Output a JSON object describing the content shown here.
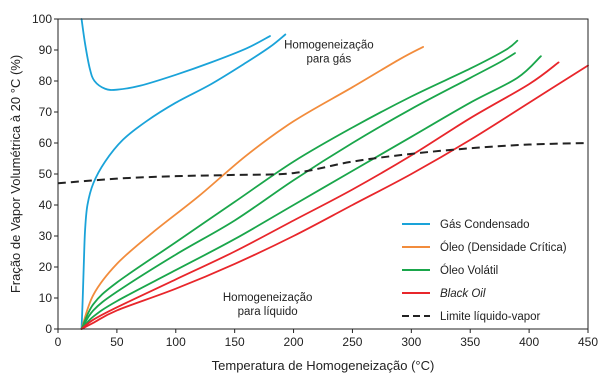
{
  "chart_data": {
    "type": "line",
    "xlabel": "Temperatura de Homogeneização (°C)",
    "ylabel": "Fração de Vapor Volumétrica à 20 °C (%)",
    "xlim": [
      0,
      450
    ],
    "ylim": [
      0,
      100
    ],
    "xticks": [
      "0",
      "50",
      "100",
      "150",
      "200",
      "250",
      "300",
      "350",
      "400",
      "450"
    ],
    "yticks": [
      "0",
      "10",
      "20",
      "30",
      "40",
      "50",
      "60",
      "70",
      "80",
      "90",
      "100"
    ],
    "grid": false,
    "legend_position": "bottom-right",
    "annotations": [
      {
        "lines": [
          "Homogeneização",
          "para gás"
        ],
        "x": 230,
        "y": 90.5
      },
      {
        "lines": [
          "Homogeneização",
          "para líquido"
        ],
        "x": 178,
        "y": 9
      }
    ],
    "legend": [
      {
        "label": "Gás Condensado",
        "color": "#1aa3d9",
        "style": "solid"
      },
      {
        "label": "Óleo (Densidade Crítica)",
        "color": "#f28c3c",
        "style": "solid"
      },
      {
        "label": "Óleo Volátil",
        "color": "#1aa64b",
        "style": "solid"
      },
      {
        "label": "Black Oil",
        "color": "#e8262b",
        "style": "solid",
        "italic": true
      },
      {
        "label": "Limite líquido-vapor",
        "color": "#222222",
        "style": "dashed"
      }
    ],
    "series": [
      {
        "group": "Gás Condensado",
        "color": "#1aa3d9",
        "points": [
          [
            20,
            100
          ],
          [
            23,
            92
          ],
          [
            27,
            84
          ],
          [
            31,
            80
          ],
          [
            40,
            77.5
          ],
          [
            50,
            77.2
          ],
          [
            70,
            78.5
          ],
          [
            100,
            82
          ],
          [
            130,
            86
          ],
          [
            160,
            90.5
          ],
          [
            180,
            94.5
          ]
        ]
      },
      {
        "group": "Gás Condensado",
        "color": "#1aa3d9",
        "points": [
          [
            20,
            0
          ],
          [
            21,
            10
          ],
          [
            22,
            22
          ],
          [
            23,
            32
          ],
          [
            25,
            40
          ],
          [
            30,
            47
          ],
          [
            40,
            54
          ],
          [
            55,
            61
          ],
          [
            75,
            67
          ],
          [
            100,
            73
          ],
          [
            130,
            79
          ],
          [
            160,
            86
          ],
          [
            180,
            91
          ],
          [
            193,
            95
          ]
        ]
      },
      {
        "group": "Óleo (Densidade Crítica)",
        "color": "#f28c3c",
        "points": [
          [
            20,
            0
          ],
          [
            30,
            11
          ],
          [
            50,
            21
          ],
          [
            80,
            31
          ],
          [
            120,
            43
          ],
          [
            160,
            56
          ],
          [
            200,
            67
          ],
          [
            250,
            78
          ],
          [
            290,
            87
          ],
          [
            310,
            91
          ]
        ]
      },
      {
        "group": "Óleo Volátil",
        "color": "#1aa64b",
        "points": [
          [
            20,
            0
          ],
          [
            30,
            8
          ],
          [
            50,
            15
          ],
          [
            100,
            28
          ],
          [
            150,
            41
          ],
          [
            200,
            54
          ],
          [
            250,
            65
          ],
          [
            300,
            75
          ],
          [
            350,
            84
          ],
          [
            380,
            90
          ],
          [
            390,
            93
          ]
        ]
      },
      {
        "group": "Óleo Volátil",
        "color": "#1aa64b",
        "points": [
          [
            20,
            0
          ],
          [
            30,
            6
          ],
          [
            50,
            12
          ],
          [
            100,
            24
          ],
          [
            150,
            35
          ],
          [
            200,
            48
          ],
          [
            250,
            60
          ],
          [
            300,
            71
          ],
          [
            350,
            81
          ],
          [
            375,
            86
          ],
          [
            388,
            89
          ]
        ]
      },
      {
        "group": "Óleo Volátil",
        "color": "#1aa64b",
        "points": [
          [
            20,
            0
          ],
          [
            30,
            4
          ],
          [
            50,
            9
          ],
          [
            100,
            19
          ],
          [
            150,
            29
          ],
          [
            200,
            40
          ],
          [
            250,
            51
          ],
          [
            300,
            62
          ],
          [
            350,
            73
          ],
          [
            390,
            81
          ],
          [
            410,
            88
          ]
        ]
      },
      {
        "group": "Black Oil",
        "color": "#e8262b",
        "points": [
          [
            20,
            0
          ],
          [
            30,
            3
          ],
          [
            50,
            7
          ],
          [
            100,
            16
          ],
          [
            150,
            25
          ],
          [
            200,
            35
          ],
          [
            250,
            45
          ],
          [
            300,
            56
          ],
          [
            350,
            68
          ],
          [
            400,
            79
          ],
          [
            425,
            86
          ]
        ]
      },
      {
        "group": "Black Oil",
        "color": "#e8262b",
        "points": [
          [
            20,
            0
          ],
          [
            30,
            2
          ],
          [
            50,
            6
          ],
          [
            100,
            13
          ],
          [
            150,
            21
          ],
          [
            200,
            30
          ],
          [
            250,
            40
          ],
          [
            300,
            50
          ],
          [
            350,
            61
          ],
          [
            400,
            73
          ],
          [
            450,
            85
          ]
        ]
      },
      {
        "group": "Limite líquido-vapor",
        "color": "#222222",
        "dashed": true,
        "points": [
          [
            0,
            47
          ],
          [
            50,
            48.5
          ],
          [
            100,
            49.3
          ],
          [
            150,
            49.7
          ],
          [
            200,
            50.3
          ],
          [
            250,
            54
          ],
          [
            300,
            56.5
          ],
          [
            350,
            58.3
          ],
          [
            400,
            59.5
          ],
          [
            450,
            60
          ]
        ]
      }
    ]
  }
}
